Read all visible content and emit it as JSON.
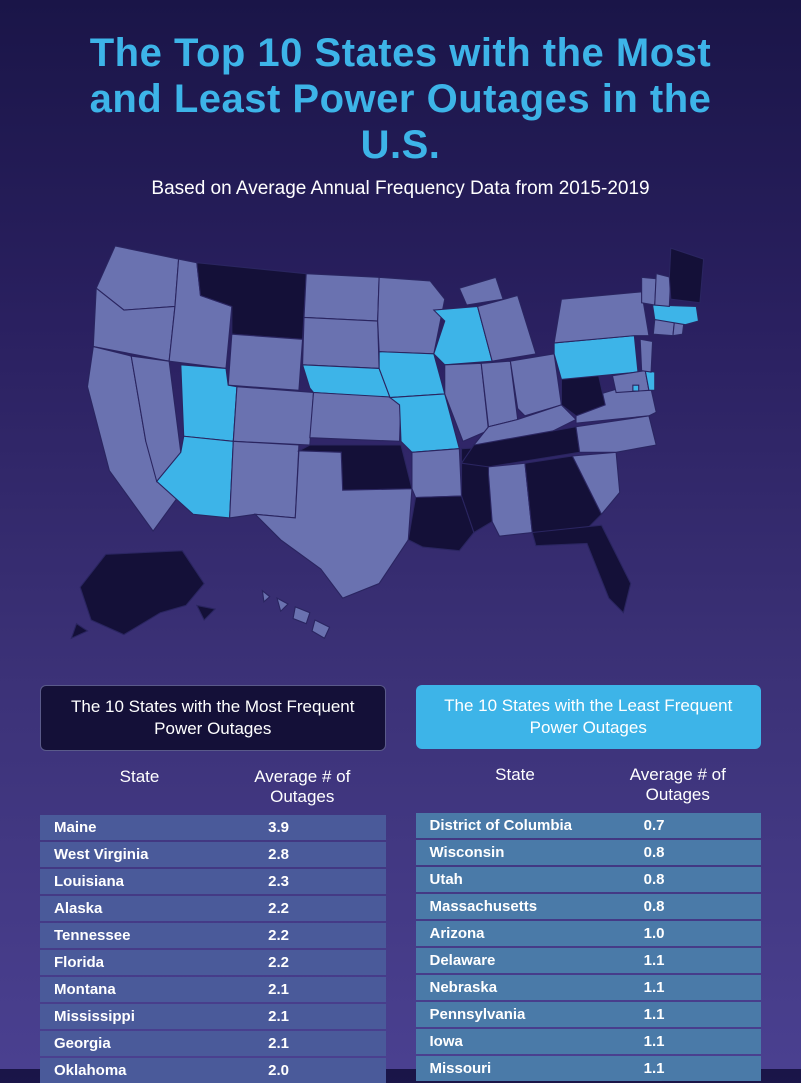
{
  "title": "The Top 10 States with the Most and Least Power Outages in the U.S.",
  "subtitle": "Based on Average Annual Frequency Data from 2015-2019",
  "colors": {
    "bg_gradient_top": "#1a1548",
    "bg_gradient_bottom": "#4a4090",
    "title_color": "#3db4e8",
    "map_default": "#6a72b0",
    "map_most": "#141038",
    "map_least": "#3db4e8",
    "hdr_most_bg": "#141038",
    "hdr_least_bg": "#3db4e8",
    "row_most_bg": "#4a5a9a",
    "row_least_bg": "#4a7aa8"
  },
  "tables": {
    "most": {
      "header": "The 10 States with the Most Frequent Power Outages",
      "col1": "State",
      "col2": "Average # of Outages",
      "rows": [
        {
          "state": "Maine",
          "value": "3.9"
        },
        {
          "state": "West Virginia",
          "value": "2.8"
        },
        {
          "state": "Louisiana",
          "value": "2.3"
        },
        {
          "state": "Alaska",
          "value": "2.2"
        },
        {
          "state": "Tennessee",
          "value": "2.2"
        },
        {
          "state": "Florida",
          "value": "2.2"
        },
        {
          "state": "Montana",
          "value": "2.1"
        },
        {
          "state": "Mississippi",
          "value": "2.1"
        },
        {
          "state": "Georgia",
          "value": "2.1"
        },
        {
          "state": "Oklahoma",
          "value": "2.0"
        }
      ]
    },
    "least": {
      "header": "The 10 States with the Least Frequent Power Outages",
      "col1": "State",
      "col2": "Average # of Outages",
      "rows": [
        {
          "state": "District of Columbia",
          "value": "0.7"
        },
        {
          "state": "Wisconsin",
          "value": "0.8"
        },
        {
          "state": "Utah",
          "value": "0.8"
        },
        {
          "state": "Massachusetts",
          "value": "0.8"
        },
        {
          "state": "Arizona",
          "value": "1.0"
        },
        {
          "state": "Delaware",
          "value": "1.1"
        },
        {
          "state": "Nebraska",
          "value": "1.1"
        },
        {
          "state": "Pennsylvania",
          "value": "1.1"
        },
        {
          "state": "Iowa",
          "value": "1.1"
        },
        {
          "state": "Missouri",
          "value": "1.1"
        }
      ]
    }
  },
  "map": {
    "states": {
      "ME": "most",
      "WV": "most",
      "LA": "most",
      "AK": "most",
      "TN": "most",
      "FL": "most",
      "MT": "most",
      "MS": "most",
      "GA": "most",
      "OK": "most",
      "DC": "least",
      "WI": "least",
      "UT": "least",
      "MA": "least",
      "AZ": "least",
      "DE": "least",
      "NE": "least",
      "PA": "least",
      "IA": "least",
      "MO": "least"
    },
    "fills": {
      "default": "#6a72b0",
      "most": "#141038",
      "least": "#3db4e8"
    },
    "stroke": "#2a2560",
    "stroke_width": 1.5
  }
}
